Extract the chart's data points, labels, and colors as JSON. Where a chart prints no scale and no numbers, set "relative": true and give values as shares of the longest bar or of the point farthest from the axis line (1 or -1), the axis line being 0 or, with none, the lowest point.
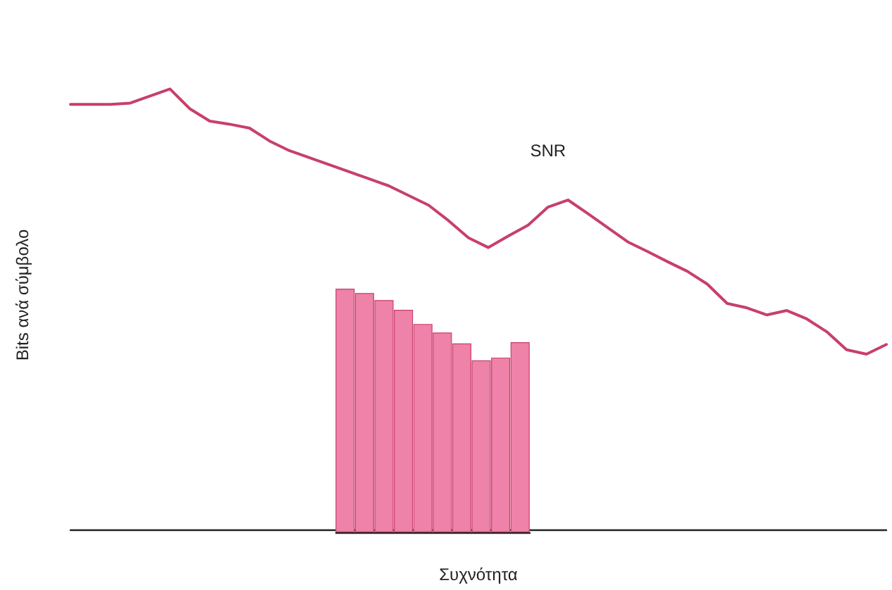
{
  "chart_data": [
    {
      "type": "line",
      "relative": true,
      "xlabel": "Συχνότητα",
      "ylabel": "Bits ανά σύμβολο",
      "marker": "none",
      "categories": [
        null,
        null,
        null,
        null,
        null,
        null,
        null,
        null,
        null,
        null,
        null,
        null,
        null,
        null,
        null,
        null,
        null,
        null,
        null,
        null,
        null,
        null,
        null,
        null,
        null,
        null,
        null,
        null,
        null,
        null,
        null,
        null,
        null,
        null,
        null,
        null,
        null,
        null,
        null,
        null,
        null,
        null
      ],
      "series": [
        {
          "name": "SNR",
          "color": "#c8406a",
          "values": [
            0.965,
            0.965,
            0.965,
            0.968,
            0.984,
            1,
            0.955,
            0.927,
            0.92,
            0.911,
            0.882,
            0.86,
            0.844,
            0.828,
            0.812,
            0.796,
            0.78,
            0.758,
            0.736,
            0.701,
            0.662,
            0.64,
            0.666,
            0.691,
            0.732,
            0.748,
            0.717,
            0.685,
            0.653,
            0.631,
            0.608,
            0.586,
            0.557,
            0.513,
            0.503,
            0.487,
            0.497,
            0.478,
            0.449,
            0.408,
            0.398,
            0.42
          ]
        }
      ]
    },
    {
      "type": "bar",
      "relative": true,
      "categories": [
        null,
        null,
        null,
        null,
        null,
        null,
        null,
        null,
        null,
        null
      ],
      "series": [
        {
          "color": "#ee82a8",
          "values": [
            1,
            0.982,
            0.953,
            0.913,
            0.855,
            0.82,
            0.775,
            0.706,
            0.717,
            0.78
          ]
        }
      ]
    }
  ]
}
